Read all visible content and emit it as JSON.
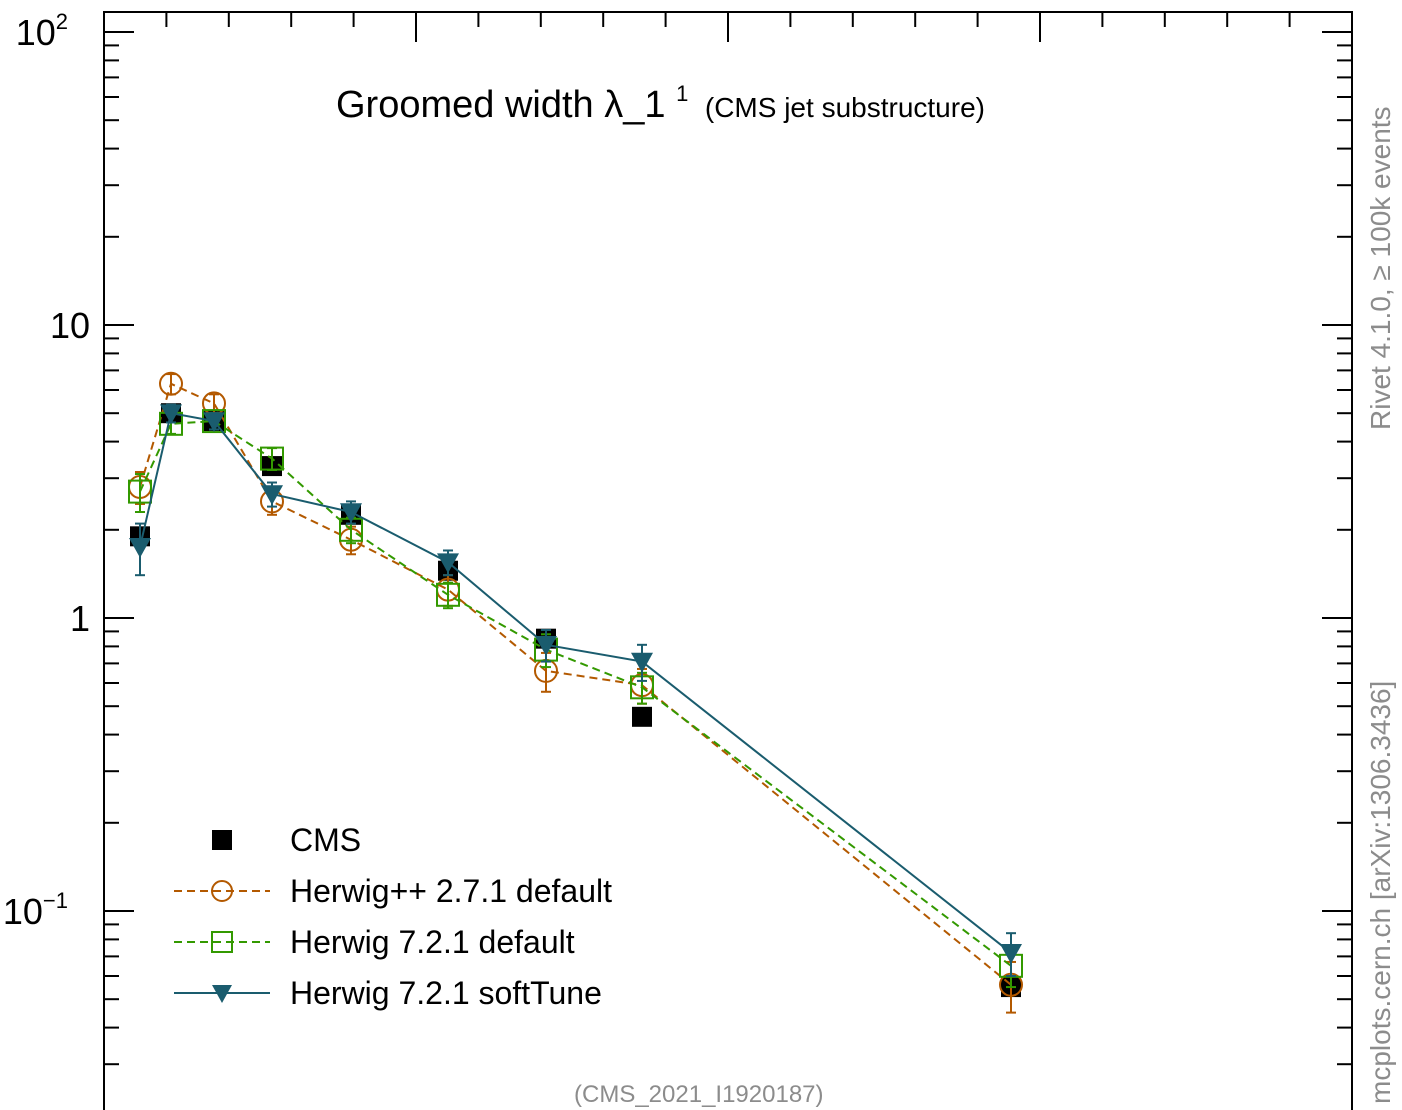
{
  "chart_data": {
    "type": "line",
    "title": "Groomed width",
    "title_symbol": "λ_1",
    "title_sup": "1",
    "title_note": "(CMS jet substructure)",
    "y_scale": "log",
    "ylim": [
      0.025,
      110
    ],
    "xlim": [
      0,
      1
    ],
    "x_visible_extent": [
      0.055,
      0.75
    ],
    "y_ticks": [
      {
        "value": 100,
        "base": "10",
        "exp": "2"
      },
      {
        "value": 10,
        "base": "10",
        "exp": ""
      },
      {
        "value": 1,
        "base": "1",
        "exp": ""
      },
      {
        "value": 0.1,
        "base": "10",
        "exp": "−1"
      }
    ],
    "series": [
      {
        "name": "CMS",
        "color": "#000000",
        "marker": "filled-square",
        "line": "none",
        "points": [
          {
            "x": 0.025,
            "y": 1.9
          },
          {
            "x": 0.05,
            "y": 5.0
          },
          {
            "x": 0.085,
            "y": 4.7
          },
          {
            "x": 0.135,
            "y": 3.3
          },
          {
            "x": 0.2,
            "y": 2.25
          },
          {
            "x": 0.28,
            "y": 1.45
          },
          {
            "x": 0.36,
            "y": 0.85
          },
          {
            "x": 0.44,
            "y": 0.46
          },
          {
            "x": 0.75,
            "y": 0.055
          }
        ]
      },
      {
        "name": "Herwig++ 2.7.1 default",
        "color": "#b35900",
        "marker": "open-circle",
        "line": "dashed",
        "points": [
          {
            "x": 0.025,
            "y": 2.8,
            "err": 0.35
          },
          {
            "x": 0.05,
            "y": 6.3,
            "err": 0.5
          },
          {
            "x": 0.085,
            "y": 5.4,
            "err": 0.4
          },
          {
            "x": 0.135,
            "y": 2.5,
            "err": 0.25
          },
          {
            "x": 0.2,
            "y": 1.85,
            "err": 0.2
          },
          {
            "x": 0.28,
            "y": 1.25,
            "err": 0.15
          },
          {
            "x": 0.36,
            "y": 0.66,
            "err": 0.1
          },
          {
            "x": 0.44,
            "y": 0.59,
            "err": 0.08
          },
          {
            "x": 0.75,
            "y": 0.056,
            "err": 0.011
          }
        ]
      },
      {
        "name": "Herwig 7.2.1 default",
        "color": "#339900",
        "marker": "open-square",
        "line": "dashed",
        "points": [
          {
            "x": 0.025,
            "y": 2.7,
            "err": 0.4
          },
          {
            "x": 0.05,
            "y": 4.6,
            "err": 0.35
          },
          {
            "x": 0.085,
            "y": 4.7,
            "err": 0.3
          },
          {
            "x": 0.135,
            "y": 3.5,
            "err": 0.3
          },
          {
            "x": 0.2,
            "y": 2.0,
            "err": 0.2
          },
          {
            "x": 0.28,
            "y": 1.2,
            "err": 0.12
          },
          {
            "x": 0.36,
            "y": 0.78,
            "err": 0.1
          },
          {
            "x": 0.44,
            "y": 0.58,
            "err": 0.07
          },
          {
            "x": 0.75,
            "y": 0.065,
            "err": 0.01
          }
        ]
      },
      {
        "name": "Herwig 7.2.1 softTune",
        "color": "#1a5c6e",
        "marker": "filled-triangle-down",
        "line": "solid",
        "points": [
          {
            "x": 0.025,
            "y": 1.75,
            "err": 0.35
          },
          {
            "x": 0.05,
            "y": 5.0,
            "err": 0.35
          },
          {
            "x": 0.085,
            "y": 4.7,
            "err": 0.3
          },
          {
            "x": 0.135,
            "y": 2.65,
            "err": 0.25
          },
          {
            "x": 0.2,
            "y": 2.3,
            "err": 0.2
          },
          {
            "x": 0.28,
            "y": 1.55,
            "err": 0.15
          },
          {
            "x": 0.36,
            "y": 0.81,
            "err": 0.1
          },
          {
            "x": 0.44,
            "y": 0.71,
            "err": 0.1
          },
          {
            "x": 0.75,
            "y": 0.072,
            "err": 0.012
          }
        ]
      }
    ],
    "legend": {
      "placement": "bottom-left",
      "entries": [
        "CMS",
        "Herwig++ 2.7.1 default",
        "Herwig 7.2.1 default",
        "Herwig 7.2.1 softTune"
      ]
    },
    "side_label_top": "Rivet 4.1.0, ≥ 100k events",
    "side_label_bottom": "mcplots.cern.ch [arXiv:1306.3436]",
    "footer": "(CMS_2021_I1920187)"
  }
}
